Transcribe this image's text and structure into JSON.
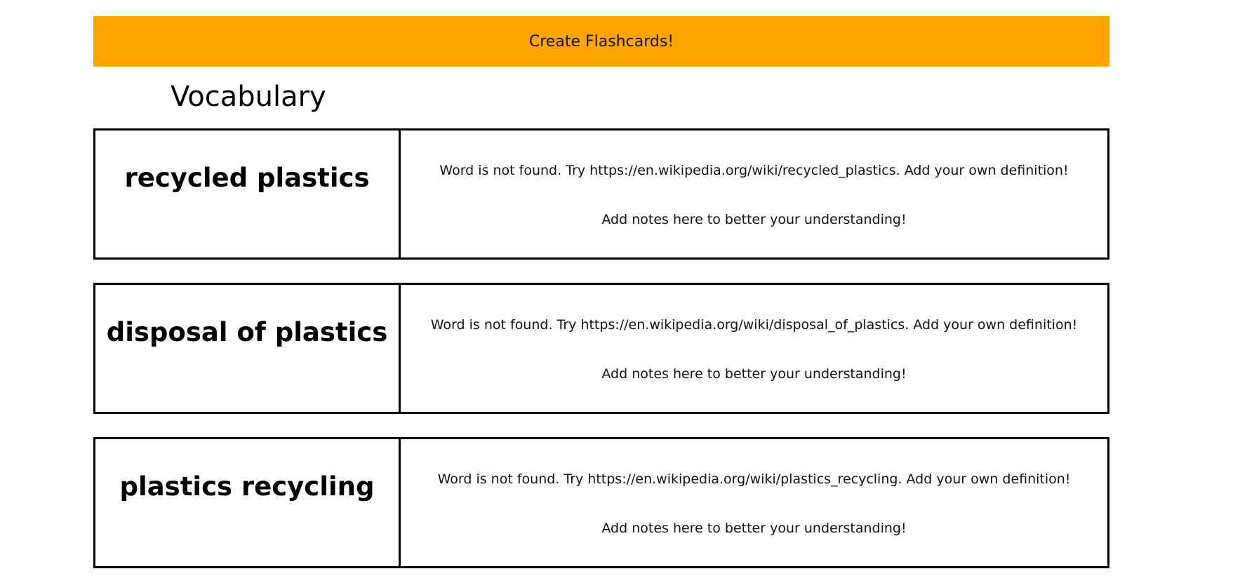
{
  "header": {
    "create_button_label": "Create Flashcards!",
    "accent_color": "#ffa500"
  },
  "main": {
    "title": "Vocabulary",
    "cards": [
      {
        "term": "recycled plastics",
        "definition": "Word is not found. Try https://en.wikipedia.org/wiki/recycled_plastics. Add your own definition!",
        "notes": "Add notes here to better your understanding!"
      },
      {
        "term": "disposal of plastics",
        "definition": "Word is not found. Try https://en.wikipedia.org/wiki/disposal_of_plastics. Add your own definition!",
        "notes": "Add notes here to better your understanding!"
      },
      {
        "term": "plastics recycling",
        "definition": "Word is not found. Try https://en.wikipedia.org/wiki/plastics_recycling. Add your own definition!",
        "notes": "Add notes here to better your understanding!"
      }
    ]
  }
}
